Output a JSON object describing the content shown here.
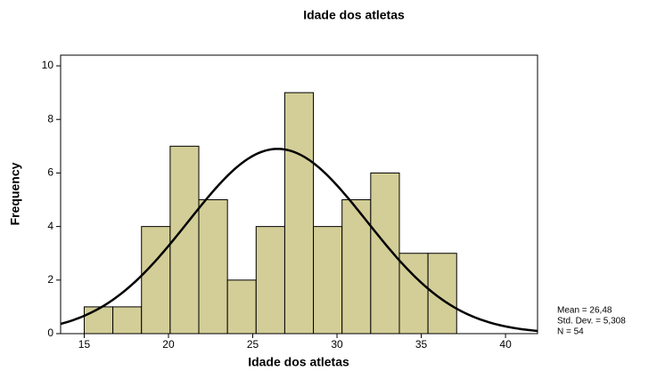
{
  "chart_data": {
    "type": "histogram",
    "title": "Idade dos atletas",
    "x_label": "Idade dos atletas",
    "y_label": "Frequency",
    "bins": [
      15,
      16.7,
      18.4,
      20.1,
      21.8,
      23.5,
      25.2,
      26.9,
      28.6,
      30.3,
      32,
      33.7,
      35.4,
      37.1
    ],
    "counts": [
      1,
      1,
      4,
      7,
      5,
      2,
      4,
      9,
      4,
      5,
      6,
      3,
      3
    ],
    "color": "#d3ce97",
    "xlim": [
      13.6,
      41.9
    ],
    "xticks": [
      15,
      20,
      25,
      30,
      35,
      40
    ],
    "ylim": [
      0,
      10.4
    ],
    "yticks": [
      0,
      2,
      4,
      6,
      8,
      10
    ],
    "normal_curve": true,
    "stats": {
      "mean": {
        "value": 26.48,
        "label": "Mean = 26,48"
      },
      "sd": {
        "value": 5.308,
        "label": "Std. Dev. = 5,308"
      },
      "n": {
        "value": 54,
        "label": "N = 54"
      }
    }
  }
}
